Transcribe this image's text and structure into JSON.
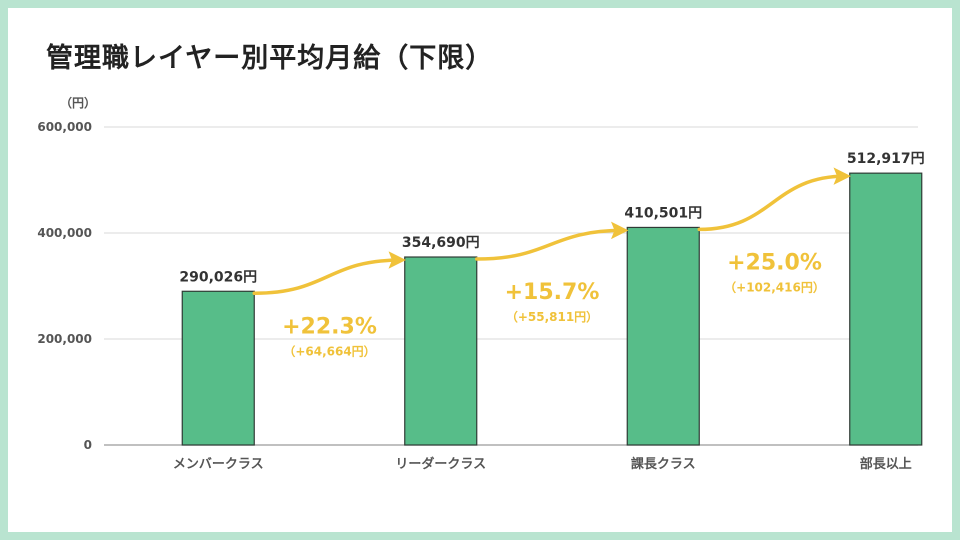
{
  "title": "管理職レイヤー別平均月給（下限）",
  "colors": {
    "bar": "#57bd89",
    "bar_outline": "#2f3b35",
    "arrow": "#f0c23a",
    "growth_text": "#f0c23a",
    "grid": "#d9d9d9",
    "axis_text": "#555555",
    "value_label": "#333333"
  },
  "chart_data": {
    "type": "bar",
    "title": "管理職レイヤー別平均月給（下限）",
    "unit": "（円）",
    "xlabel": "",
    "ylabel": "",
    "ylim": [
      0,
      600000
    ],
    "yticks": [
      0,
      200000,
      400000,
      600000
    ],
    "ytick_labels": [
      "0",
      "200,000",
      "400,000",
      "600,000"
    ],
    "grid": true,
    "legend": "none",
    "categories": [
      "メンバークラス",
      "リーダークラス",
      "課長クラス",
      "部長以上"
    ],
    "values": [
      290026,
      354690,
      410501,
      512917
    ],
    "value_labels": [
      "290,026円",
      "354,690円",
      "410,501円",
      "512,917円"
    ],
    "growth": [
      {
        "from": "メンバークラス",
        "to": "リーダークラス",
        "pct": "+22.3%",
        "diff": "（+64,664円）"
      },
      {
        "from": "リーダークラス",
        "to": "課長クラス",
        "pct": "+15.7%",
        "diff": "（+55,811円）"
      },
      {
        "from": "課長クラス",
        "to": "部長以上",
        "pct": "+25.0%",
        "diff": "（+102,416円）"
      }
    ]
  }
}
